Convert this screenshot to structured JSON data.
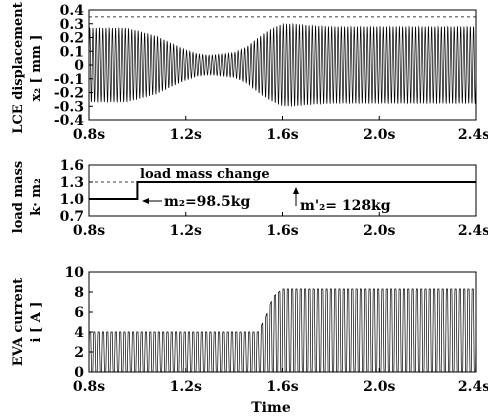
{
  "chart_data": [
    {
      "id": "displacement",
      "type": "line",
      "ylabel_lines": [
        "LCE displacement",
        "x₂ [ mm ]"
      ],
      "xlim": [
        0.8,
        2.4
      ],
      "ylim": [
        -0.4,
        0.4
      ],
      "x_ticks": [
        "0.8s",
        "1.2s",
        "1.6s",
        "2.0s",
        "2.4s"
      ],
      "x_tick_values": [
        0.8,
        1.2,
        1.6,
        2.0,
        2.4
      ],
      "y_ticks": [
        "0.4",
        "0.3",
        "0.2",
        "0.1",
        "0",
        "-0.1",
        "-0.2",
        "-0.3",
        "-0.4"
      ],
      "y_tick_values": [
        0.4,
        0.3,
        0.2,
        0.1,
        0,
        -0.1,
        -0.2,
        -0.3,
        -0.4
      ],
      "dashed_lines": [
        0.35
      ],
      "cycles": 120,
      "envelope": {
        "x": [
          0.8,
          0.95,
          1.0,
          1.08,
          1.15,
          1.2,
          1.25,
          1.3,
          1.35,
          1.4,
          1.45,
          1.5,
          1.55,
          1.6,
          1.65,
          1.7,
          1.8,
          2.0,
          2.2,
          2.4
        ],
        "amplitude": [
          0.27,
          0.27,
          0.25,
          0.21,
          0.15,
          0.11,
          0.08,
          0.07,
          0.08,
          0.09,
          0.13,
          0.2,
          0.26,
          0.3,
          0.3,
          0.29,
          0.28,
          0.28,
          0.28,
          0.28
        ]
      }
    },
    {
      "id": "load-mass",
      "type": "line",
      "ylabel_lines": [
        "load mass",
        "k· m₂"
      ],
      "xlim": [
        0.8,
        2.4
      ],
      "ylim": [
        0.7,
        1.6
      ],
      "x_ticks": [
        "0.8s",
        "1.2s",
        "1.6s",
        "2.0s",
        "2.4s"
      ],
      "x_tick_values": [
        0.8,
        1.2,
        1.6,
        2.0,
        2.4
      ],
      "y_ticks": [
        "1.6",
        "1.3",
        "1.0",
        "0.7"
      ],
      "y_tick_values": [
        1.6,
        1.3,
        1.0,
        0.7
      ],
      "dashed_lines": [
        1.6,
        1.3
      ],
      "x": [
        0.8,
        1.0,
        1.0,
        2.4
      ],
      "y": [
        1.0,
        1.0,
        1.3,
        1.3
      ],
      "annotations": {
        "change": "load mass change",
        "m2": "m₂=98.5kg",
        "m2_prime": "m'₂= 128kg"
      }
    },
    {
      "id": "current",
      "type": "line",
      "ylabel_lines": [
        "EVA current",
        "i [ A ]"
      ],
      "xlabel": "Time",
      "xlim": [
        0.8,
        2.4
      ],
      "ylim": [
        0,
        10
      ],
      "x_ticks": [
        "0.8s",
        "1.2s",
        "1.6s",
        "2.0s",
        "2.4s"
      ],
      "x_tick_values": [
        0.8,
        1.2,
        1.6,
        2.0,
        2.4
      ],
      "y_ticks": [
        "10",
        "8",
        "6",
        "4",
        "2",
        "0"
      ],
      "y_tick_values": [
        10,
        8,
        6,
        4,
        2,
        0
      ],
      "dashed_lines": [
        10
      ],
      "cycles": 90,
      "envelope": {
        "x": [
          0.8,
          1.5,
          1.53,
          1.56,
          1.6,
          2.4
        ],
        "peak": [
          4.0,
          4.0,
          5.5,
          7.5,
          8.3,
          8.3
        ]
      }
    }
  ]
}
